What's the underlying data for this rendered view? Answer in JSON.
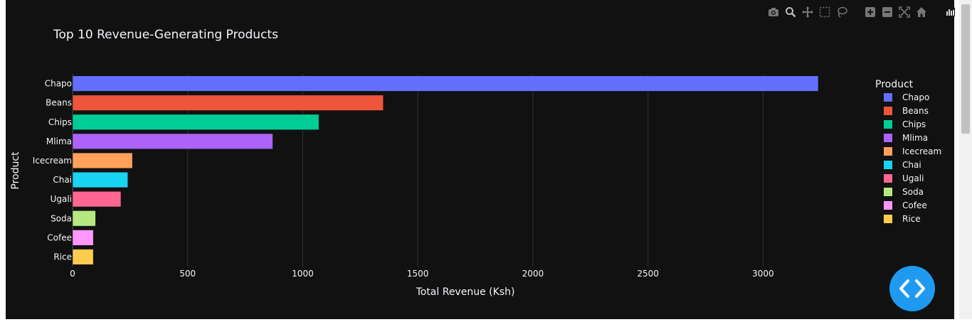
{
  "chart_data": {
    "type": "bar",
    "orientation": "horizontal",
    "title": "Top 10 Revenue-Generating Products",
    "xlabel": "Total Revenue (Ksh)",
    "ylabel": "Product",
    "categories": [
      "Chapo",
      "Beans",
      "Chips",
      "Mlima",
      "Icecream",
      "Chai",
      "Ugali",
      "Soda",
      "Cofee",
      "Rice"
    ],
    "values": [
      3240,
      1350,
      1070,
      870,
      260,
      240,
      210,
      100,
      90,
      90
    ],
    "colors": [
      "#636efa",
      "#EF553B",
      "#00cc96",
      "#ab63fa",
      "#FFA15A",
      "#19d3f3",
      "#FF6692",
      "#B6E880",
      "#FF97FF",
      "#FECB52"
    ],
    "xticks": [
      0,
      500,
      1000,
      1500,
      2000,
      2500,
      3000
    ],
    "xlim": [
      0,
      3240
    ],
    "grid": true,
    "legend_title": "Product",
    "legend_position": "right"
  },
  "modebar": {
    "icons": [
      "camera-icon",
      "zoom-icon",
      "pan-icon",
      "box-select-icon",
      "lasso-icon",
      "zoom-in-icon",
      "zoom-out-icon",
      "autoscale-icon",
      "reset-axes-icon",
      "plotly-logo-icon"
    ]
  },
  "theme": {
    "background": "#111111",
    "grid": "#283442",
    "text": "#f2f5fa",
    "embed_button": "#1e9bf0"
  }
}
